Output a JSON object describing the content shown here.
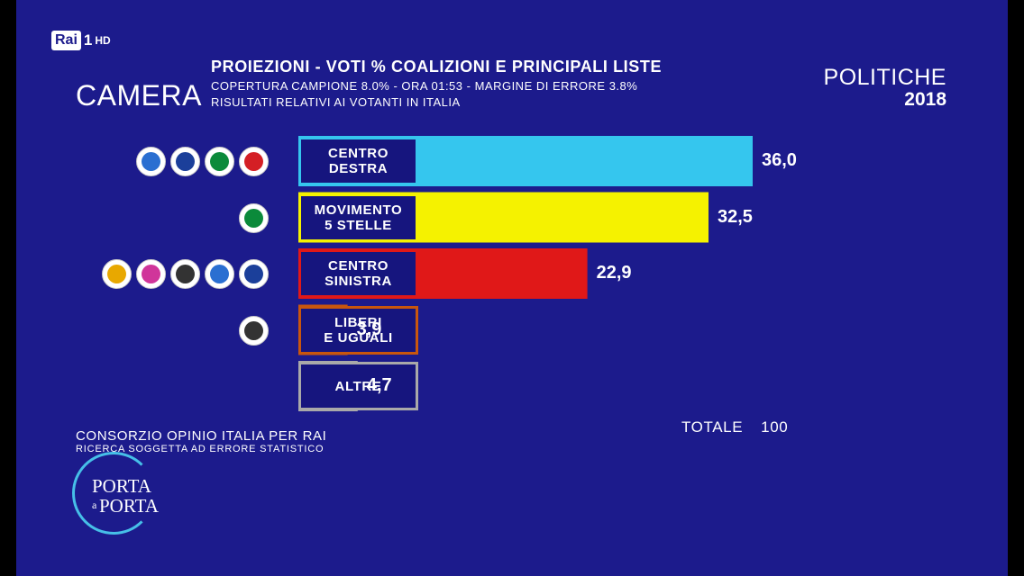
{
  "channel": {
    "brand": "Rai",
    "number": "1",
    "hd": "HD"
  },
  "header": {
    "chamber": "CAMERA",
    "title": "PROIEZIONI - VOTI % COALIZIONI E PRINCIPALI LISTE",
    "subtitle_1": "COPERTURA CAMPIONE 8.0% - ORA 01:53 - MARGINE DI ERRORE 3.8%",
    "subtitle_2": "RISULTATI RELATIVI AI VOTANTI IN ITALIA"
  },
  "election": {
    "name": "POLITICHE",
    "year": "2018"
  },
  "chart_data": {
    "type": "bar",
    "orientation": "horizontal",
    "categories": [
      "CENTRO\nDESTRA",
      "MOVIMENTO\n5 STELLE",
      "CENTRO\nSINISTRA",
      "LIBERI\nE UGUALI",
      "ALTRE"
    ],
    "values": [
      36.0,
      32.5,
      22.9,
      3.9,
      4.7
    ],
    "value_labels": [
      "36,0",
      "32,5",
      "22,9",
      "3,9",
      "4,7"
    ],
    "colors": [
      "#35c6ee",
      "#f5f200",
      "#e01818",
      "#c8560e",
      "#a9a9a9"
    ],
    "label_border_colors": [
      "#35c6ee",
      "#f5f200",
      "#e01818",
      "#c8560e",
      "#a9a9a9"
    ],
    "logo_counts": [
      4,
      1,
      5,
      1,
      0
    ],
    "total_label": "TOTALE",
    "total_value": "100"
  },
  "footer": {
    "source": "CONSORZIO OPINIO ITALIA PER RAI",
    "disclaimer": "RICERCA SOGGETTA AD ERRORE STATISTICO"
  },
  "show_logo": {
    "line1": "PORTA",
    "a": "a",
    "line2": "PORTA"
  }
}
